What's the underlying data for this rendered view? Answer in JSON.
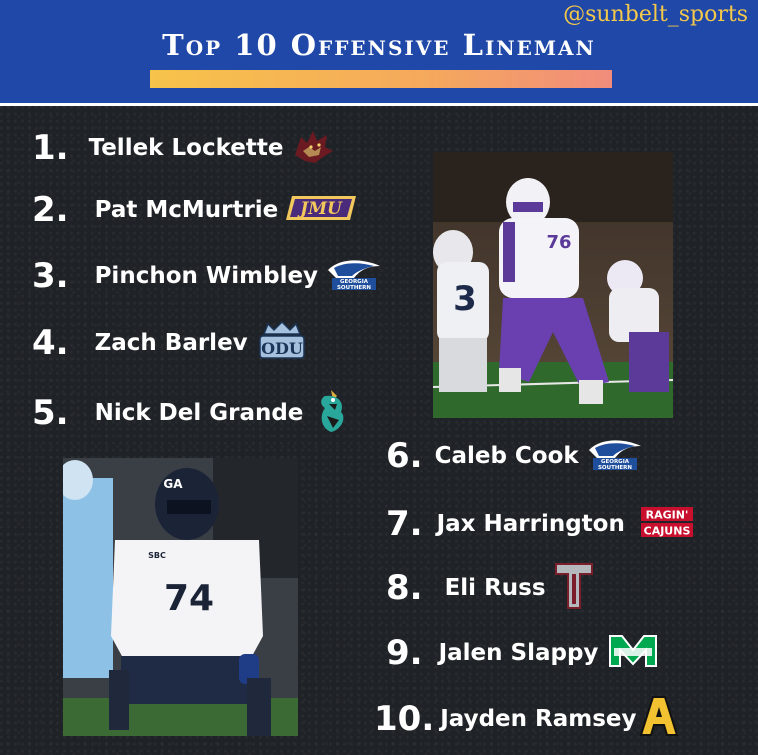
{
  "header": {
    "handle": "@sunbelt_sports",
    "title": "Top 10  Offensive Lineman"
  },
  "rankings": [
    {
      "rank": "1.",
      "name": "Tellek Lockette",
      "logo": "texas-state-bobcat-logo"
    },
    {
      "rank": "2.",
      "name": "Pat McMurtrie",
      "logo": "jmu-logo"
    },
    {
      "rank": "3.",
      "name": "Pinchon Wimbley",
      "logo": "georgia-southern-eagle-logo"
    },
    {
      "rank": "4.",
      "name": "Zach Barlev",
      "logo": "odu-crown-logo"
    },
    {
      "rank": "5.",
      "name": "Nick Del Grande",
      "logo": "coastal-carolina-chanticleer-logo"
    },
    {
      "rank": "6.",
      "name": "Caleb Cook",
      "logo": "georgia-southern-eagle-logo"
    },
    {
      "rank": "7.",
      "name": "Jax Harrington",
      "logo": "ragin-cajuns-logo"
    },
    {
      "rank": "8.",
      "name": "Eli Russ",
      "logo": "troy-t-logo"
    },
    {
      "rank": "9.",
      "name": "Jalen Slappy",
      "logo": "marshall-herd-logo"
    },
    {
      "rank": "10.",
      "name": "Jayden Ramsey",
      "logo": "app-state-a-logo"
    }
  ],
  "logos": {
    "jmu_text": "JMU",
    "georgia_text_1": "GEORGIA",
    "georgia_text_2": "SOUTHERN",
    "odu_text": "ODU",
    "ragin_text_1": "RAGIN'",
    "ragin_text_2": "CAJUNS"
  },
  "photos": {
    "top_jersey_number": "76",
    "top_opponent_number": "3",
    "bottom_jersey_number": "74",
    "bottom_helmet_mark": "GA",
    "bottom_patch": "SBC"
  },
  "colors": {
    "header_blue": "#1f48a8",
    "handle_gold": "#f4c84a",
    "background": "#1f2226"
  }
}
